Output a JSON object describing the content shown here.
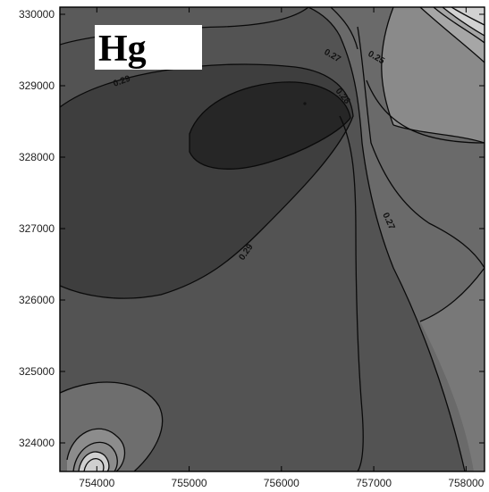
{
  "chart_data": {
    "type": "contour",
    "title": "Hg",
    "xlabel": "",
    "ylabel": "",
    "xlim": [
      753600,
      758200
    ],
    "ylim": [
      323600,
      330100
    ],
    "x_ticks": [
      "754000",
      "755000",
      "756000",
      "757000",
      "758000"
    ],
    "y_ticks": [
      "324000",
      "325000",
      "326000",
      "327000",
      "328000",
      "329000",
      "330000"
    ],
    "contour_labels": [
      "0.29",
      "0.29",
      "0.27",
      "0.25",
      "0.28",
      "0.27"
    ],
    "colors": {
      "darkest": "#2a2a2a",
      "dark": "#3e3e3e",
      "mid": "#535353",
      "light": "#6a6a6a",
      "lighter": "#8a8a8a",
      "lightest": "#d2d2d2",
      "line": "#0a0a0a"
    }
  }
}
